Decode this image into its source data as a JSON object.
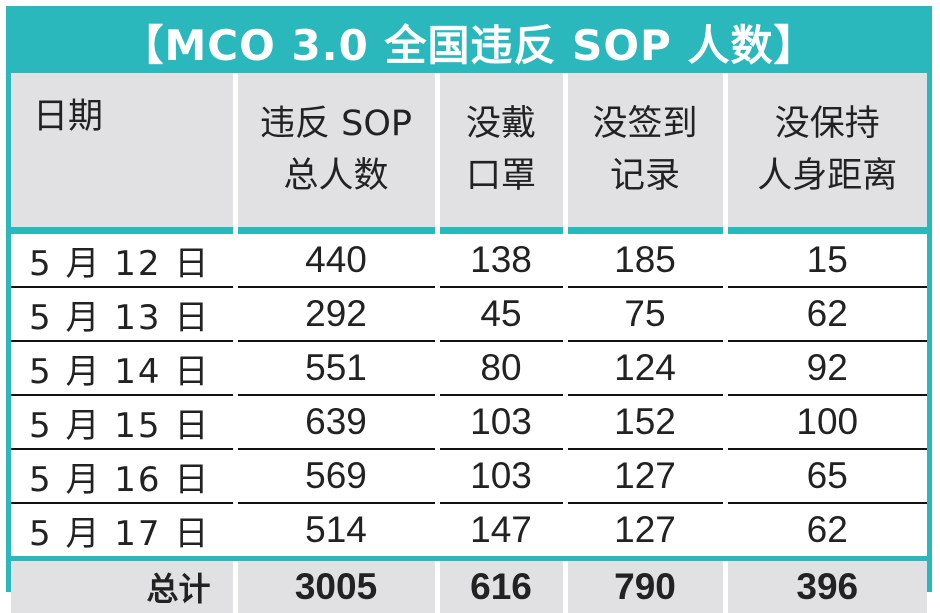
{
  "title": "【MCO 3.0 全国违反 SOP 人数】",
  "colors": {
    "accent": "#2bb8bd",
    "header_bg": "#e1e1e3"
  },
  "headers": [
    {
      "lines": [
        "日期"
      ]
    },
    {
      "lines": [
        "违反 SOP",
        "总人数"
      ]
    },
    {
      "lines": [
        "没戴",
        "口罩"
      ]
    },
    {
      "lines": [
        "没签到",
        "记录"
      ]
    },
    {
      "lines": [
        "没保持",
        "人身距离"
      ]
    }
  ],
  "rows": [
    {
      "date": "5 月 12 日",
      "values": [
        "440",
        "138",
        "185",
        "15"
      ]
    },
    {
      "date": "5 月 13 日",
      "values": [
        "292",
        "45",
        "75",
        "62"
      ]
    },
    {
      "date": "5 月 14 日",
      "values": [
        "551",
        "80",
        "124",
        "92"
      ]
    },
    {
      "date": "5 月 15 日",
      "values": [
        "639",
        "103",
        "152",
        "100"
      ]
    },
    {
      "date": "5 月 16 日",
      "values": [
        "569",
        "103",
        "127",
        "65"
      ]
    },
    {
      "date": "5 月 17 日",
      "values": [
        "514",
        "147",
        "127",
        "62"
      ]
    }
  ],
  "total": {
    "label": "总计",
    "values": [
      "3005",
      "616",
      "790",
      "396"
    ]
  },
  "chart_data": {
    "type": "table",
    "title": "【MCO 3.0 全国违反 SOP 人数】",
    "columns": [
      "日期",
      "违反 SOP 总人数",
      "没戴口罩",
      "没签到记录",
      "没保持人身距离"
    ],
    "rows": [
      [
        "5 月 12 日",
        440,
        138,
        185,
        15
      ],
      [
        "5 月 13 日",
        292,
        45,
        75,
        62
      ],
      [
        "5 月 14 日",
        551,
        80,
        124,
        92
      ],
      [
        "5 月 15 日",
        639,
        103,
        152,
        100
      ],
      [
        "5 月 16 日",
        569,
        103,
        127,
        65
      ],
      [
        "5 月 17 日",
        514,
        147,
        127,
        62
      ]
    ],
    "total": [
      "总计",
      3005,
      616,
      790,
      396
    ]
  }
}
